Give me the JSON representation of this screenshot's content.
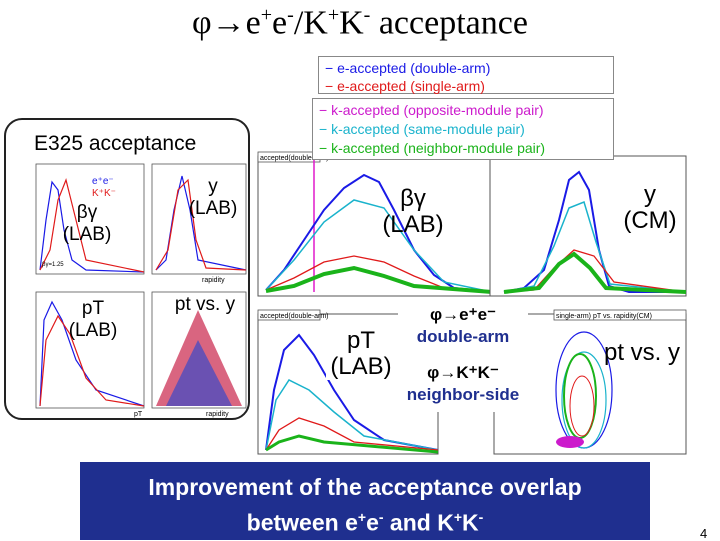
{
  "slide": {
    "title": {
      "phi": "φ",
      "arrow": "→",
      "e_plus": "e",
      "plus_sup": "+",
      "e_minus": "e",
      "minus_sup": "-",
      "slash": "/",
      "k_plus": "K",
      "k_plus_sup": "+",
      "k_minus": "K",
      "k_minus_sup": "-",
      "rest": " acceptance"
    },
    "page_number": "4"
  },
  "legend_top": {
    "items": [
      "e-accepted (double-arm)",
      "e-accepted (single-arm)"
    ],
    "colors": [
      "#1a1ae6",
      "#e01a1a"
    ]
  },
  "legend_bottom": {
    "items": [
      "k-accepted (opposite-module pair)",
      "k-accepted (same-module pair)",
      "k-accepted (neighbor-module pair)"
    ],
    "colors": [
      "#cc1acc",
      "#1ab3cc",
      "#1ab31a"
    ]
  },
  "e325_panel": {
    "title": "E325 acceptance",
    "legend_ee": "e⁺e⁻",
    "legend_kk": "K⁺K⁻",
    "label_bg": "βγ",
    "label_bg_frame": "(LAB)",
    "label_y": "y",
    "label_y_frame": "(LAB)",
    "label_pt": "pT",
    "label_pt_frame": "(LAB)",
    "label_ptvsy": "pt vs. y",
    "axis_pt": "pT",
    "axis_rapidity_1": "rapidity",
    "axis_rapidity_2": "rapidity",
    "inset_text": "βγ=1.25"
  },
  "right_plots": {
    "head_1": "accepted(double-arm)",
    "head_2": "accepted(double-arm)",
    "head_3": "single-arm) pT vs. rapidity(CM)",
    "label_bg": "βγ",
    "label_bg_frame": "(LAB)",
    "label_y": "y",
    "label_y_frame": "(CM)",
    "label_pt": "pT",
    "label_pt_frame": "(LAB)",
    "label_ptvsy": "pt vs. y"
  },
  "annotation": {
    "phi_ee": "φ→e⁺e⁻",
    "double_arm": "double-arm",
    "phi_kk": "φ→K⁺K⁻",
    "neighbor_side": "neighbor-side"
  },
  "bottom_banner": {
    "line1": "Improvement of the acceptance overlap",
    "line2_a": "between e",
    "line2_b": "+",
    "line2_c": "e",
    "line2_d": "-",
    "line2_e": " and K",
    "line2_f": "+",
    "line2_g": "K",
    "line2_h": "-"
  },
  "colors": {
    "banner": "#1f2f8f",
    "ee_double": "#1a1ae6",
    "ee_single": "#e01a1a",
    "kk_opposite": "#cc1acc",
    "kk_same": "#1ab3cc",
    "kk_neighbor": "#1ab31a"
  }
}
